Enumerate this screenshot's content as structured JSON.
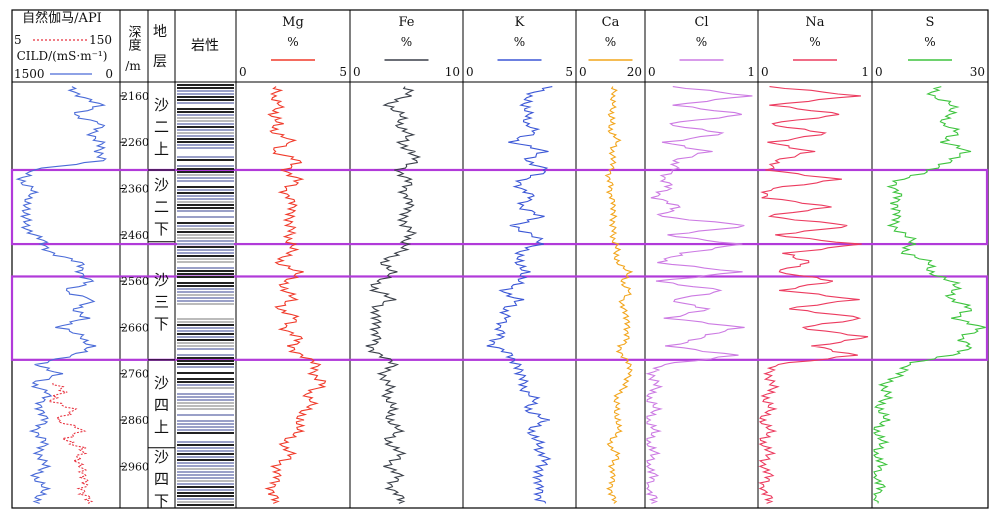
{
  "tracks": {
    "gr_label": "自然伽马/API",
    "gr_min": "5",
    "gr_max": "150",
    "cild_label": "CILD/(mS·m⁻¹)",
    "cild_min": "1500",
    "cild_max": "0",
    "depth_label_1": "深度",
    "depth_label_2": "/m",
    "strata_label_1": "地",
    "strata_label_2": "层",
    "lith_label": "岩性"
  },
  "colors": {
    "gr": "#e8323f",
    "cild": "#4a6bd8",
    "mg": "#f03a2a",
    "fe": "#3a3f48",
    "k": "#3b57d6",
    "ca": "#f2a51c",
    "cl": "#cc7ae3",
    "na": "#ec3b5f",
    "s": "#3ec43e",
    "highlight": "#b13ad9"
  },
  "chart_data": {
    "type": "line",
    "y_axis": {
      "label": "深度 /m",
      "min": 2130,
      "max": 3050,
      "ticks": [
        2160,
        2260,
        2360,
        2460,
        2560,
        2660,
        2760,
        2860,
        2960
      ]
    },
    "strata": [
      {
        "line1": "沙",
        "line2": "二",
        "line3": "上",
        "top": 2130,
        "bottom": 2320
      },
      {
        "line1": "沙",
        "line2": "二",
        "line3": "下",
        "top": 2320,
        "bottom": 2475
      },
      {
        "line1": "沙",
        "line2": "三",
        "line3": "下",
        "top": 2475,
        "bottom": 2730
      },
      {
        "line1": "沙",
        "line2": "四",
        "line3": "上",
        "top": 2730,
        "bottom": 2920
      },
      {
        "line1": "沙",
        "line2": "四",
        "line3": "下",
        "top": 2920,
        "bottom": 3050
      }
    ],
    "highlight_intervals": [
      [
        2320,
        2480
      ],
      [
        2550,
        2730
      ]
    ],
    "series": [
      {
        "key": "mg",
        "name": "Mg",
        "unit": "%",
        "min": "0",
        "max": "5",
        "xlim": [
          0,
          5
        ],
        "depths": [
          2140,
          2160,
          2180,
          2200,
          2220,
          2240,
          2260,
          2280,
          2300,
          2320,
          2340,
          2360,
          2380,
          2400,
          2420,
          2440,
          2460,
          2480,
          2500,
          2520,
          2540,
          2560,
          2580,
          2600,
          2620,
          2640,
          2660,
          2680,
          2700,
          2720,
          2740,
          2760,
          2780,
          2800,
          2820,
          2840,
          2860,
          2880,
          2900,
          2920,
          2940,
          2960,
          2980,
          3000,
          3020,
          3040
        ],
        "values": [
          1.8,
          1.4,
          2.2,
          1.3,
          2.0,
          1.6,
          2.4,
          1.7,
          2.6,
          2.3,
          2.7,
          2.1,
          2.5,
          2.3,
          2.6,
          2.2,
          2.4,
          2.5,
          2.2,
          2.0,
          2.6,
          2.3,
          2.1,
          2.4,
          2.0,
          2.5,
          2.2,
          2.7,
          2.4,
          3.0,
          3.4,
          3.6,
          3.8,
          3.2,
          3.5,
          2.8,
          3.0,
          2.6,
          2.4,
          2.1,
          2.3,
          1.9,
          1.6,
          1.8,
          1.5,
          1.6
        ]
      },
      {
        "key": "fe",
        "name": "Fe",
        "unit": "%",
        "min": "0",
        "max": "10",
        "xlim": [
          0,
          10
        ],
        "depths": [
          2140,
          2160,
          2180,
          2200,
          2220,
          2240,
          2260,
          2280,
          2300,
          2320,
          2340,
          2360,
          2380,
          2400,
          2420,
          2440,
          2460,
          2480,
          2500,
          2520,
          2540,
          2560,
          2580,
          2600,
          2620,
          2640,
          2660,
          2680,
          2700,
          2720,
          2740,
          2760,
          2780,
          2800,
          2820,
          2840,
          2860,
          2880,
          2900,
          2920,
          2940,
          2960,
          2980,
          3000,
          3020,
          3040
        ],
        "values": [
          5.0,
          4.8,
          3.6,
          4.2,
          4.5,
          5.2,
          4.3,
          5.8,
          5.5,
          4.6,
          5.0,
          4.8,
          5.4,
          4.9,
          5.2,
          4.5,
          5.6,
          5.0,
          3.9,
          3.2,
          3.4,
          2.7,
          2.0,
          3.5,
          2.4,
          1.8,
          2.6,
          2.2,
          1.6,
          2.9,
          3.5,
          3.2,
          3.0,
          3.4,
          3.6,
          3.3,
          3.8,
          4.0,
          3.5,
          3.9,
          4.2,
          3.6,
          4.0,
          3.8,
          4.1,
          4.3
        ]
      },
      {
        "key": "k",
        "name": "K",
        "unit": "%",
        "min": "0",
        "max": "5",
        "xlim": [
          0,
          5
        ],
        "depths": [
          2140,
          2160,
          2180,
          2200,
          2220,
          2240,
          2260,
          2280,
          2300,
          2320,
          2340,
          2360,
          2380,
          2400,
          2420,
          2440,
          2460,
          2480,
          2500,
          2520,
          2540,
          2560,
          2580,
          2600,
          2620,
          2640,
          2660,
          2680,
          2700,
          2720,
          2740,
          2760,
          2780,
          2800,
          2820,
          2840,
          2860,
          2880,
          2900,
          2920,
          2940,
          2960,
          2980,
          3000,
          3020,
          3040
        ],
        "values": [
          4.0,
          3.0,
          2.5,
          3.2,
          2.6,
          3.3,
          2.2,
          3.5,
          3.0,
          3.6,
          2.8,
          2.5,
          3.0,
          2.7,
          3.3,
          2.4,
          3.0,
          3.4,
          2.6,
          2.2,
          3.0,
          2.4,
          1.8,
          2.6,
          1.6,
          2.2,
          1.3,
          1.8,
          1.2,
          2.0,
          2.6,
          2.3,
          2.9,
          2.7,
          3.2,
          3.0,
          3.5,
          3.2,
          3.1,
          3.4,
          3.8,
          3.3,
          3.6,
          3.2,
          3.5,
          3.7
        ]
      },
      {
        "key": "ca",
        "name": "Ca",
        "unit": "%",
        "min": "0",
        "max": "20",
        "xlim": [
          0,
          20
        ],
        "depths": [
          2140,
          2160,
          2180,
          2200,
          2220,
          2240,
          2260,
          2280,
          2300,
          2320,
          2340,
          2360,
          2380,
          2400,
          2420,
          2440,
          2460,
          2480,
          2500,
          2520,
          2540,
          2560,
          2580,
          2600,
          2620,
          2640,
          2660,
          2680,
          2700,
          2720,
          2740,
          2760,
          2780,
          2800,
          2820,
          2840,
          2860,
          2880,
          2900,
          2920,
          2940,
          2960,
          2980,
          3000,
          3020,
          3040
        ],
        "values": [
          11,
          10,
          12,
          9,
          11,
          10,
          12,
          11,
          10,
          11,
          9,
          10,
          11,
          10,
          12,
          10,
          11,
          12,
          11,
          13,
          15,
          14,
          16,
          13,
          15,
          14,
          16,
          15,
          13,
          14,
          15,
          17,
          14,
          13,
          12,
          11,
          13,
          12,
          11,
          10,
          12,
          11,
          10,
          11,
          10,
          11
        ]
      },
      {
        "key": "cl",
        "name": "Cl",
        "unit": "%",
        "min": "0",
        "max": "1",
        "xlim": [
          0,
          1
        ],
        "depths": [
          2140,
          2160,
          2180,
          2200,
          2220,
          2240,
          2260,
          2280,
          2300,
          2320,
          2340,
          2360,
          2380,
          2400,
          2420,
          2440,
          2460,
          2480,
          2500,
          2520,
          2540,
          2560,
          2580,
          2600,
          2620,
          2640,
          2660,
          2680,
          2700,
          2720,
          2740,
          2760,
          2780,
          2800,
          2820,
          2840,
          2860,
          2880,
          2900,
          2920,
          2940,
          2960,
          2980,
          3000,
          3020,
          3040
        ],
        "values": [
          0.25,
          0.9,
          0.3,
          0.85,
          0.2,
          0.7,
          0.15,
          0.6,
          0.2,
          0.3,
          0.12,
          0.2,
          0.1,
          0.25,
          0.15,
          0.9,
          0.2,
          0.85,
          0.3,
          0.15,
          0.8,
          0.12,
          0.7,
          0.2,
          0.6,
          0.15,
          0.9,
          0.5,
          0.2,
          0.85,
          0.1,
          0.08,
          0.06,
          0.05,
          0.04,
          0.05,
          0.03,
          0.04,
          0.03,
          0.04,
          0.03,
          0.04,
          0.03,
          0.03,
          0.03,
          0.04
        ]
      },
      {
        "key": "na",
        "name": "Na",
        "unit": "%",
        "min": "0",
        "max": "1",
        "xlim": [
          0,
          1
        ],
        "depths": [
          2140,
          2160,
          2180,
          2200,
          2220,
          2240,
          2260,
          2280,
          2300,
          2320,
          2340,
          2360,
          2380,
          2400,
          2420,
          2440,
          2460,
          2480,
          2500,
          2520,
          2540,
          2560,
          2580,
          2600,
          2620,
          2640,
          2660,
          2680,
          2700,
          2720,
          2740,
          2760,
          2780,
          2800,
          2820,
          2840,
          2860,
          2880,
          2900,
          2920,
          2940,
          2960,
          2980,
          3000,
          3020,
          3040
        ],
        "values": [
          0.1,
          0.85,
          0.15,
          0.7,
          0.1,
          0.6,
          0.08,
          0.5,
          0.1,
          0.12,
          0.7,
          0.1,
          0.08,
          0.6,
          0.1,
          0.8,
          0.15,
          0.9,
          0.2,
          0.5,
          0.1,
          0.7,
          0.2,
          0.85,
          0.3,
          0.9,
          0.4,
          0.95,
          0.5,
          0.9,
          0.1,
          0.12,
          0.08,
          0.1,
          0.07,
          0.06,
          0.05,
          0.06,
          0.05,
          0.06,
          0.05,
          0.06,
          0.05,
          0.05,
          0.05,
          0.06
        ]
      },
      {
        "key": "s",
        "name": "S",
        "unit": "%",
        "min": "0",
        "max": "30",
        "xlim": [
          0,
          30
        ],
        "depths": [
          2140,
          2160,
          2180,
          2200,
          2220,
          2240,
          2260,
          2280,
          2300,
          2320,
          2340,
          2360,
          2380,
          2400,
          2420,
          2440,
          2460,
          2480,
          2500,
          2520,
          2540,
          2560,
          2580,
          2600,
          2620,
          2640,
          2660,
          2680,
          2700,
          2720,
          2740,
          2760,
          2780,
          2800,
          2820,
          2840,
          2860,
          2880,
          2900,
          2920,
          2940,
          2960,
          2980,
          3000,
          3020,
          3040
        ],
        "values": [
          18,
          16,
          20,
          22,
          17,
          23,
          19,
          24,
          22,
          14,
          8,
          5,
          6,
          7,
          5,
          6,
          8,
          10,
          9,
          14,
          16,
          20,
          22,
          21,
          25,
          23,
          28,
          24,
          26,
          20,
          10,
          6,
          4,
          3,
          2,
          2.5,
          2,
          1.5,
          1.2,
          1.5,
          1,
          1.2,
          1,
          1,
          1,
          1.1
        ]
      },
      {
        "key": "cild",
        "name": "CILD/(mS·m⁻¹)",
        "min": "1500",
        "max": "0",
        "xlim": [
          1500,
          0
        ],
        "depths": [
          2140,
          2160,
          2180,
          2200,
          2220,
          2240,
          2260,
          2280,
          2300,
          2320,
          2340,
          2360,
          2380,
          2400,
          2420,
          2440,
          2460,
          2480,
          2500,
          2520,
          2540,
          2560,
          2580,
          2600,
          2620,
          2640,
          2660,
          2680,
          2700,
          2720,
          2740,
          2760,
          2780,
          2800,
          2820,
          2840,
          2860,
          2880,
          2900,
          2920,
          2940,
          2960,
          2980,
          3000,
          3020,
          3040
        ],
        "values": [
          700,
          500,
          300,
          600,
          250,
          400,
          200,
          350,
          150,
          1300,
          1400,
          1200,
          1350,
          1250,
          1400,
          1300,
          1200,
          1100,
          900,
          600,
          500,
          400,
          800,
          300,
          700,
          400,
          900,
          500,
          350,
          700,
          1100,
          900,
          1200,
          1000,
          1150,
          1050,
          1100,
          1150,
          1100,
          1120,
          1080,
          1100,
          1150,
          1120,
          1100,
          1130
        ]
      },
      {
        "key": "gr",
        "name": "自然伽马/API",
        "min": "5",
        "max": "150",
        "xlim": [
          5,
          150
        ],
        "depths": [
          2780,
          2800,
          2820,
          2840,
          2860,
          2880,
          2900,
          2920,
          2940,
          2960,
          2980,
          3000,
          3020,
          3040
        ],
        "values": [
          55,
          75,
          60,
          85,
          70,
          95,
          80,
          100,
          90,
          105,
          95,
          110,
          100,
          108
        ]
      }
    ]
  }
}
